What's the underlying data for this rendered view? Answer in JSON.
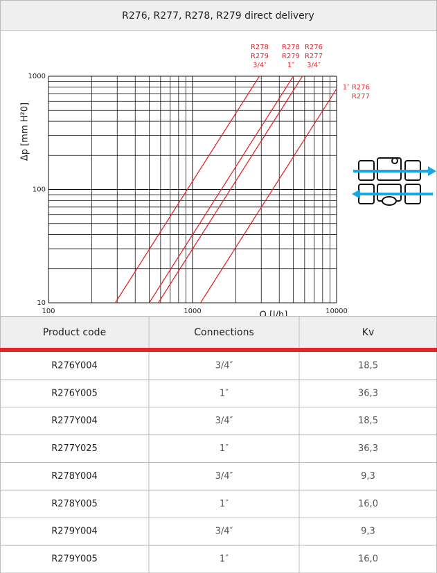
{
  "header": {
    "title": "R276, R277, R278, R279 direct delivery"
  },
  "chart_data": {
    "type": "line",
    "xlabel": "Q [l/h]",
    "ylabel": "Δp [mm H²0]",
    "xscale": "log",
    "yscale": "log",
    "xlim": [
      100,
      10000
    ],
    "ylim": [
      10,
      1000
    ],
    "xticks": [
      100,
      1000,
      10000
    ],
    "yticks": [
      10,
      100,
      1000
    ],
    "xminor": [
      200,
      300,
      400,
      500,
      600,
      700,
      800,
      900,
      2000,
      3000,
      4000,
      5000,
      6000,
      7000,
      8000,
      9000
    ],
    "yminor": [
      20,
      30,
      40,
      50,
      60,
      70,
      80,
      90,
      200,
      300,
      400,
      500,
      600,
      700,
      800,
      900
    ],
    "grid": true,
    "series": [
      {
        "label": [
          "R278",
          "R279",
          "3/4″"
        ],
        "color": "#e3262b",
        "x": [
          291,
          2912
        ],
        "values": [
          10,
          1000
        ]
      },
      {
        "label": [
          "R278",
          "R279",
          "1″"
        ],
        "color": "#e3262b",
        "x": [
          501,
          5010
        ],
        "values": [
          10,
          1000
        ]
      },
      {
        "label": [
          "R276",
          "R277",
          "3/4″"
        ],
        "color": "#e3262b",
        "x": [
          579,
          5793
        ],
        "values": [
          10,
          1000
        ]
      },
      {
        "label": [
          "1″ R276",
          "R277"
        ],
        "color": "#e3262b",
        "x": [
          1137,
          10000
        ],
        "values": [
          10,
          774
        ]
      }
    ]
  },
  "table": {
    "columns": [
      "Product code",
      "Connections",
      "Kv"
    ],
    "rows": [
      [
        "R276Y004",
        "3/4″",
        "18,5"
      ],
      [
        "R276Y005",
        "1″",
        "36,3"
      ],
      [
        "R277Y004",
        "3/4″",
        "18,5"
      ],
      [
        "R277Y025",
        "1″",
        "36,3"
      ],
      [
        "R278Y004",
        "3/4″",
        "9,3"
      ],
      [
        "R278Y005",
        "1″",
        "16,0"
      ],
      [
        "R279Y004",
        "3/4″",
        "9,3"
      ],
      [
        "R279Y005",
        "1″",
        "16,0"
      ]
    ]
  }
}
